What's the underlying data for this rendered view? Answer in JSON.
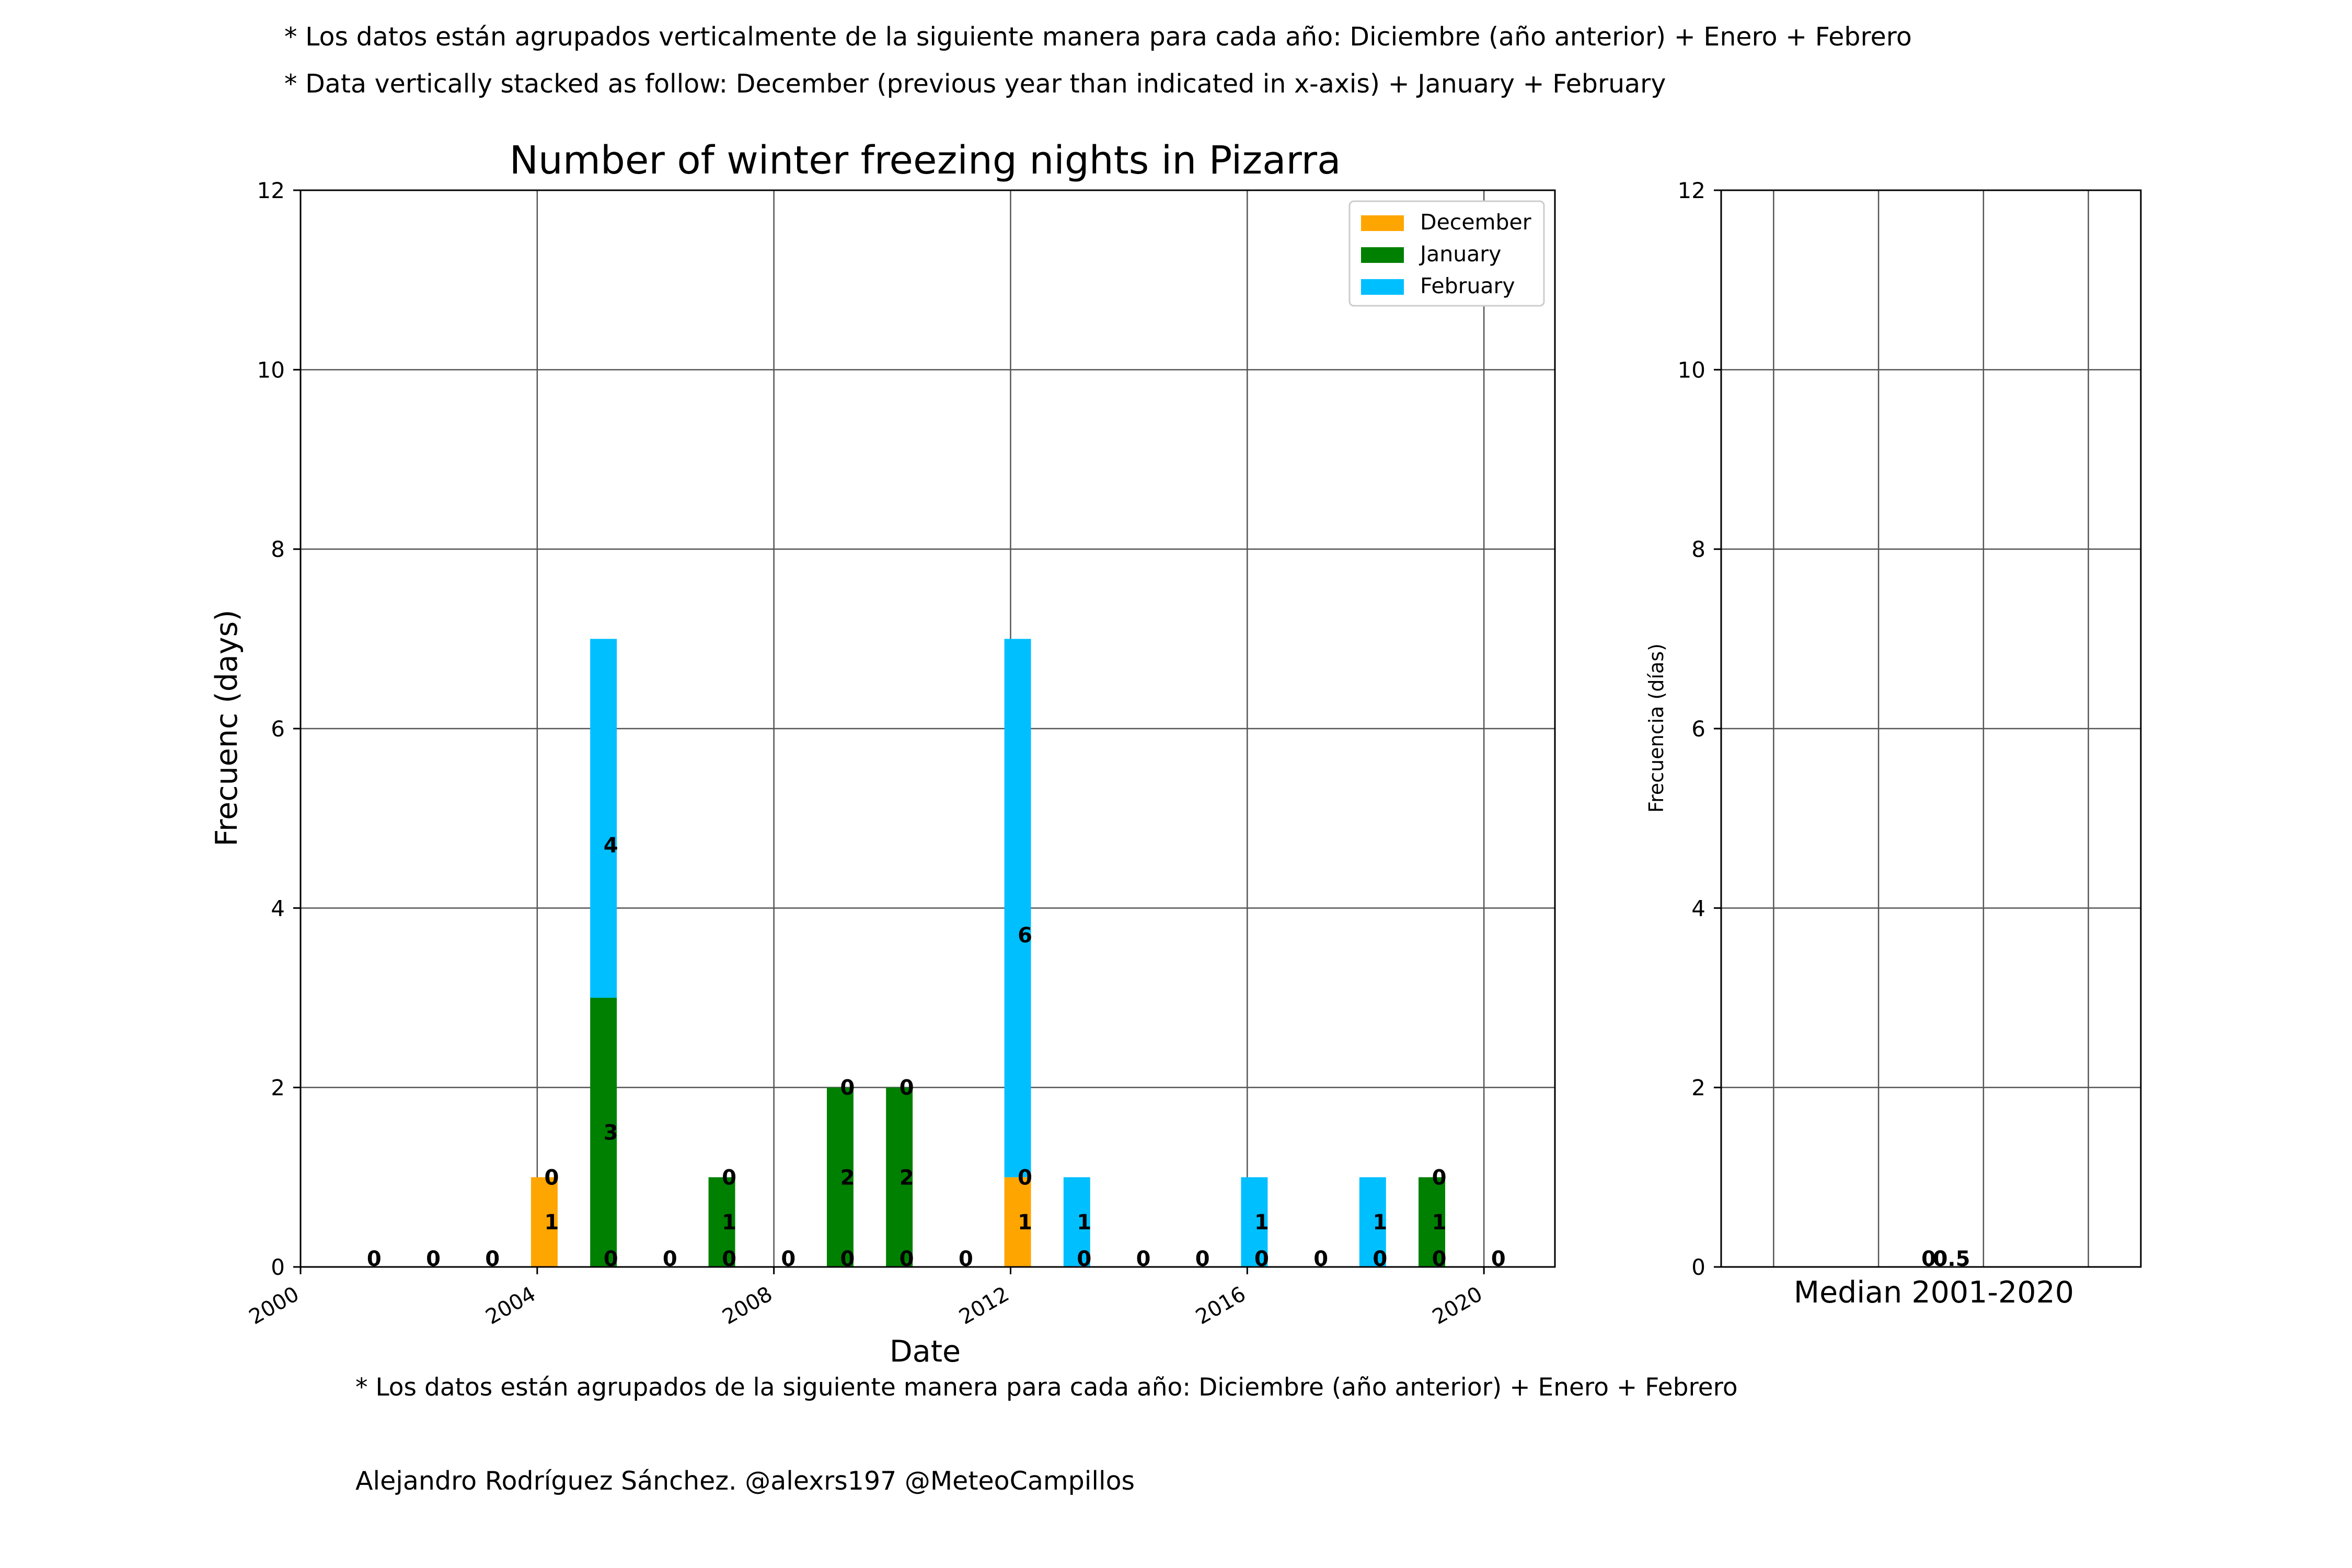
{
  "notes": {
    "top_es": "* Los datos están agrupados verticalmente de la siguiente manera para cada año: Diciembre (año anterior) + Enero  + Febrero",
    "top_en": "* Data vertically stacked as follow: December (previous year than indicated in x-axis) + January  + February",
    "bottom_es": "* Los datos están agrupados de la siguiente manera para cada año: Diciembre (año anterior) + Enero  + Febrero",
    "credit": "Alejandro Rodríguez Sánchez. @alexrs197 @MeteoCampillos"
  },
  "chart_data": [
    {
      "type": "bar",
      "stacked": true,
      "title": "Number of winter freezing nights in Pizarra",
      "xlabel": "Date",
      "ylabel": "Frecuenc (days)",
      "xlim": [
        2000,
        2021.2
      ],
      "ylim": [
        0,
        12
      ],
      "xticks": [
        "2000",
        "2004",
        "2008",
        "2012",
        "2016",
        "2020"
      ],
      "yticks": [
        "0",
        "2",
        "4",
        "6",
        "8",
        "10",
        "12"
      ],
      "grid": true,
      "legend_position": "top-right",
      "x": [
        2001,
        2002,
        2003,
        2004,
        2005,
        2006,
        2007,
        2008,
        2009,
        2010,
        2011,
        2012,
        2013,
        2014,
        2015,
        2016,
        2017,
        2018,
        2019,
        2020
      ],
      "series": [
        {
          "name": "December",
          "color": "#ffa500",
          "values": [
            0,
            0,
            0,
            1,
            0,
            0,
            0,
            0,
            0,
            0,
            0,
            1,
            0,
            0,
            0,
            0,
            0,
            0,
            0,
            0
          ]
        },
        {
          "name": "January",
          "color": "#008000",
          "values": [
            0,
            0,
            0,
            0,
            3,
            0,
            1,
            0,
            2,
            2,
            0,
            0,
            0,
            0,
            0,
            0,
            0,
            0,
            1,
            0
          ]
        },
        {
          "name": "February",
          "color": "#00bfff",
          "values": [
            0,
            0,
            0,
            0,
            4,
            0,
            0,
            0,
            0,
            0,
            0,
            6,
            1,
            0,
            0,
            1,
            0,
            1,
            0,
            0
          ]
        }
      ]
    },
    {
      "type": "bar",
      "stacked": true,
      "xlabel": "Median 2001-2020",
      "ylabel": "Frecuencia (días)",
      "ylim": [
        0,
        12
      ],
      "yticks": [
        "0",
        "2",
        "4",
        "6",
        "8",
        "10",
        "12"
      ],
      "grid": true,
      "values": [
        0,
        0,
        0.5
      ],
      "value_labels": [
        "0",
        "0",
        "0.5"
      ]
    }
  ]
}
